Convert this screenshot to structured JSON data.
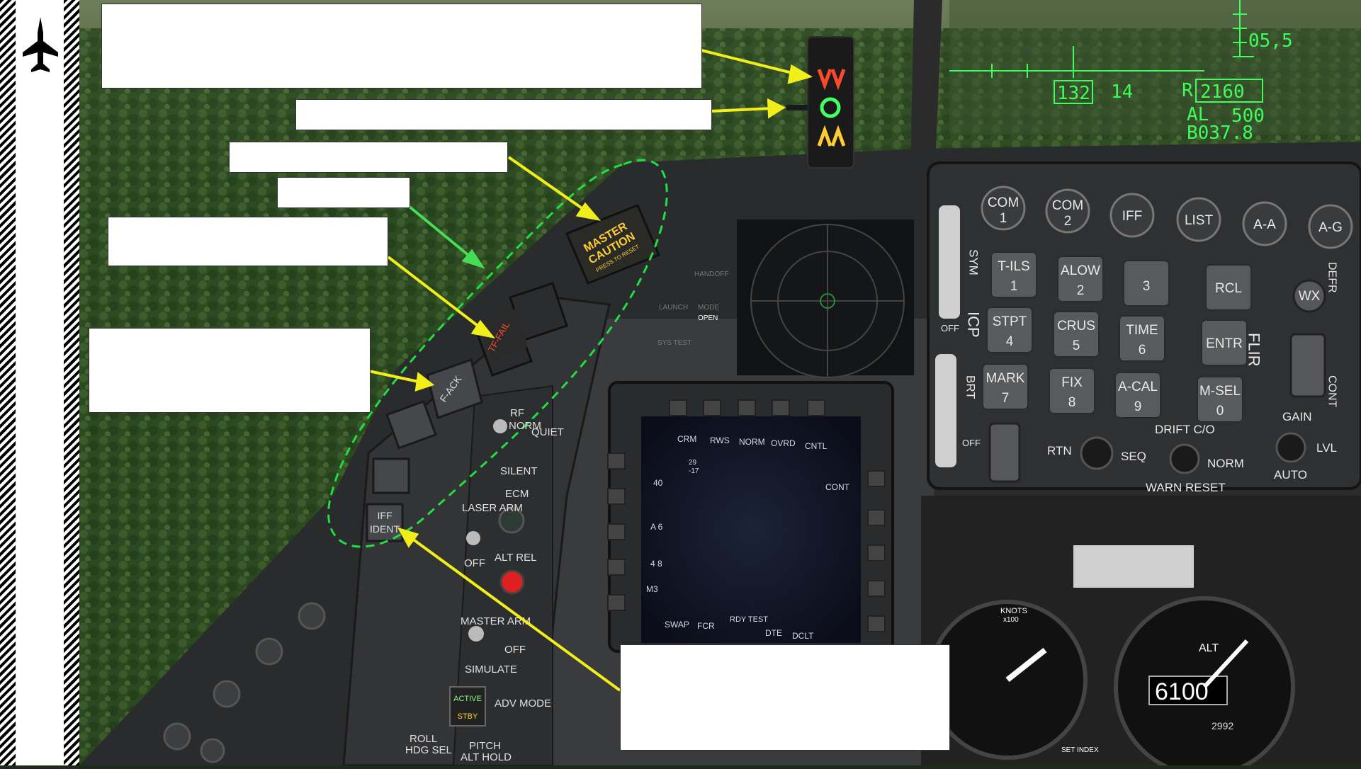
{
  "hud": {
    "values": [
      "05,5",
      "132",
      "14",
      "R",
      "2160",
      "AL",
      "500",
      "B037.8"
    ]
  },
  "master_caution": {
    "line1": "MASTER",
    "line2": "CAUTION",
    "line3": "PRESS TO RESET"
  },
  "warning_lights": {
    "tf_fail": "TF-FAIL",
    "f_ack": "F-ACK",
    "iff_ident_1": "IFF",
    "iff_ident_2": "IDENT"
  },
  "icp": {
    "top_buttons": [
      "COM",
      "COM",
      "IFF",
      "LIST",
      "A-A",
      "A-G"
    ],
    "top_sub": [
      "1",
      "2"
    ],
    "keys": [
      {
        "label": "T-ILS",
        "num": "1"
      },
      {
        "label": "ALOW",
        "num": "2"
      },
      {
        "label": "",
        "num": "3"
      },
      {
        "label": "RCL",
        "num": ""
      },
      {
        "label": "STPT",
        "num": "4"
      },
      {
        "label": "CRUS",
        "num": "5"
      },
      {
        "label": "TIME",
        "num": "6"
      },
      {
        "label": "ENTR",
        "num": ""
      },
      {
        "label": "MARK",
        "num": "7"
      },
      {
        "label": "FIX",
        "num": "8"
      },
      {
        "label": "A-CAL",
        "num": "9"
      },
      {
        "label": "M-SEL",
        "num": "0"
      }
    ],
    "wx": "WX",
    "drift": "DRIFT C/O",
    "rtn": "RTN",
    "seq": "SEQ",
    "norm": "NORM",
    "warn_reset": "WARN RESET",
    "gain": "GAIN",
    "auto": "AUTO",
    "lvl": "LVL",
    "off_top": "OFF",
    "off_bottom": "OFF",
    "sym": "SYM",
    "icp_word": "ICP",
    "brt": "BRT",
    "flir": "FLIR",
    "defr": "DEFR",
    "cont": "CONT"
  },
  "left_panel": {
    "rf": "RF",
    "norm": "NORM",
    "quiet": "QUIET",
    "silent": "SILENT",
    "ecm": "ECM",
    "laser_arm": "LASER ARM",
    "off": "OFF",
    "alt_rel": "ALT REL",
    "master_arm": "MASTER ARM",
    "master_off": "OFF",
    "simulate": "SIMULATE",
    "active": "ACTIVE",
    "stby": "STBY",
    "adv_mode": "ADV MODE",
    "roll": "ROLL",
    "hdg_sel": "HDG SEL",
    "pitch": "PITCH",
    "alt_hold": "ALT HOLD"
  },
  "mfd": {
    "top": [
      "CRM",
      "RWS",
      "NORM",
      "OVRD",
      "CNTL"
    ],
    "range": "40",
    "cont": "CONT",
    "a6": "A 6",
    "four8": "4 8",
    "m3": "M3",
    "bottom": [
      "SWAP",
      "FCR",
      "RDY TEST",
      "DTE",
      "DCLT"
    ],
    "small1": "29",
    "small2": "-17"
  },
  "panel_labels": [
    "HANDOFF",
    "LAUNCH",
    "MODE",
    "OPEN",
    "SYS TEST"
  ],
  "alt_gauge": {
    "knots": "KNOTS",
    "x100": "x100",
    "alt": "ALT",
    "reading": "6100",
    "kollsman": "2992",
    "set_index": "SET INDEX"
  },
  "colors": {
    "arrow_yellow": "#f2ee1a",
    "arrow_green": "#44dd55",
    "dashed_oval": "#22dd44",
    "hud_green": "#3cff5a"
  },
  "icons": {
    "sidebar": "fighter-jet-icon"
  }
}
